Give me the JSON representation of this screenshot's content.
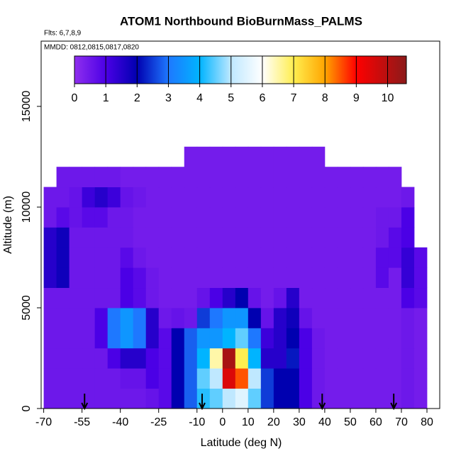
{
  "chart_data": {
    "type": "heatmap",
    "title": "ATOM1 Northbound BioBurnMass_PALMS",
    "subtitle": "Flts: 6,7,8,9",
    "annotation": "MMDD: 0812,0815,0817,0820",
    "x_label": "Latitude (deg N)",
    "y_label": "Altitude (m)",
    "xlim": [
      -71,
      85
    ],
    "ylim": [
      0,
      18240
    ],
    "xticks": [
      -70,
      -55,
      -40,
      -25,
      -10,
      0,
      10,
      20,
      30,
      40,
      50,
      60,
      70,
      80
    ],
    "yticks": [
      0,
      5000,
      10000,
      15000
    ],
    "xbins": [
      -70,
      -65,
      -60,
      -55,
      -50,
      -45,
      -40,
      -35,
      -30,
      -25,
      -20,
      -15,
      -10,
      -5,
      0,
      5,
      10,
      15,
      20,
      25,
      30,
      35,
      40,
      45,
      50,
      55,
      60,
      65,
      70,
      75,
      80
    ],
    "ybins": [
      0,
      1000,
      2000,
      3000,
      4000,
      5000,
      6000,
      7000,
      8000,
      9000,
      10000,
      11000,
      12000,
      13000
    ],
    "z": [
      [
        0.5,
        0.5,
        0.5,
        0.5,
        0.5,
        0.5,
        0.5,
        0.5,
        0.6,
        0.8,
        2.0,
        2.8,
        4.2,
        4.5,
        5.0,
        5.5,
        4.5,
        2.5,
        2.0,
        2.0,
        1.0,
        0.5,
        0.4,
        0.4,
        0.4,
        0.4,
        0.4,
        0.4,
        0.5,
        0.4
      ],
      [
        0.5,
        0.5,
        0.5,
        0.5,
        0.5,
        0.5,
        0.6,
        0.6,
        1.0,
        0.8,
        2.0,
        2.8,
        4.5,
        5.0,
        9.5,
        8.5,
        5.0,
        2.5,
        2.0,
        2.0,
        1.0,
        0.5,
        0.4,
        0.4,
        0.4,
        0.4,
        0.4,
        0.4,
        0.5,
        0.4
      ],
      [
        0.5,
        0.5,
        0.5,
        0.5,
        0.5,
        1.0,
        1.5,
        1.5,
        1.0,
        0.8,
        2.0,
        2.8,
        4.0,
        6.5,
        10.2,
        7.0,
        4.0,
        1.5,
        1.5,
        2.2,
        1.0,
        0.5,
        0.4,
        0.4,
        0.4,
        0.4,
        0.4,
        0.4,
        0.5,
        0.4
      ],
      [
        0.5,
        0.5,
        0.5,
        0.5,
        1.0,
        3.0,
        3.5,
        3.0,
        1.5,
        0.8,
        2.0,
        2.8,
        3.5,
        3.5,
        4.0,
        4.5,
        3.0,
        1.2,
        1.5,
        2.0,
        1.0,
        0.5,
        0.4,
        0.4,
        0.4,
        0.4,
        0.4,
        0.4,
        0.5,
        0.4
      ],
      [
        0.5,
        0.5,
        0.5,
        0.5,
        1.0,
        3.0,
        3.5,
        3.0,
        1.5,
        0.5,
        0.6,
        0.5,
        2.5,
        3.0,
        3.5,
        3.5,
        2.0,
        0.6,
        1.5,
        1.8,
        0.6,
        0.4,
        0.4,
        0.4,
        0.4,
        0.4,
        0.4,
        0.4,
        0.5,
        0.4
      ],
      [
        0.5,
        0.5,
        0.5,
        0.5,
        0.5,
        0.5,
        1.0,
        0.8,
        0.5,
        0.4,
        0.4,
        0.4,
        0.6,
        1.0,
        1.5,
        2.0,
        0.6,
        0.4,
        0.6,
        1.5,
        0.4,
        0.4,
        0.4,
        0.4,
        0.4,
        0.4,
        0.4,
        0.4,
        1.0,
        0.8
      ],
      [
        1.5,
        1.8,
        0.5,
        0.5,
        0.5,
        0.5,
        1.0,
        0.8,
        0.5,
        0.4,
        0.4,
        0.4,
        0.4,
        0.4,
        0.4,
        0.4,
        0.4,
        0.4,
        0.4,
        0.4,
        0.4,
        0.4,
        0.4,
        0.4,
        0.4,
        0.4,
        0.8,
        0.4,
        1.3,
        0.8
      ],
      [
        1.5,
        1.8,
        0.5,
        0.5,
        0.5,
        0.5,
        0.8,
        0.5,
        0.4,
        0.4,
        0.4,
        0.4,
        0.4,
        0.4,
        0.4,
        0.4,
        0.4,
        0.4,
        0.4,
        0.4,
        0.4,
        0.4,
        0.4,
        0.4,
        0.4,
        0.4,
        0.8,
        0.8,
        1.3,
        0.8
      ],
      [
        1.5,
        1.8,
        0.5,
        0.5,
        0.5,
        0.5,
        0.5,
        0.4,
        0.4,
        0.4,
        0.4,
        0.4,
        0.4,
        0.4,
        0.4,
        0.4,
        0.4,
        0.4,
        0.4,
        0.4,
        0.4,
        0.4,
        0.4,
        0.4,
        0.4,
        0.4,
        0.5,
        0.8,
        1.0,
        null
      ],
      [
        0.5,
        0.8,
        0.6,
        0.8,
        0.8,
        0.5,
        0.5,
        0.4,
        0.4,
        0.4,
        0.4,
        0.4,
        0.4,
        0.4,
        0.4,
        0.4,
        0.4,
        0.4,
        0.4,
        0.4,
        0.4,
        0.4,
        0.4,
        0.4,
        0.4,
        0.4,
        0.5,
        0.5,
        1.0,
        null
      ],
      [
        0.5,
        0.5,
        0.6,
        1.2,
        1.5,
        1.2,
        0.6,
        0.5,
        0.4,
        0.4,
        0.4,
        0.4,
        0.4,
        0.4,
        0.4,
        0.4,
        0.4,
        0.4,
        0.4,
        0.4,
        0.4,
        0.4,
        0.4,
        0.4,
        0.4,
        0.4,
        0.4,
        0.4,
        0.5,
        null
      ],
      [
        null,
        0.5,
        0.5,
        0.5,
        0.5,
        0.5,
        0.4,
        0.4,
        0.4,
        0.4,
        0.4,
        0.4,
        0.4,
        0.4,
        0.4,
        0.4,
        0.4,
        0.4,
        0.4,
        0.4,
        0.4,
        0.4,
        0.4,
        0.4,
        0.4,
        0.4,
        0.4,
        0.4,
        null,
        null
      ],
      [
        null,
        null,
        null,
        null,
        null,
        null,
        null,
        null,
        null,
        null,
        null,
        0.4,
        0.4,
        0.4,
        0.4,
        0.4,
        0.4,
        0.4,
        0.4,
        0.4,
        0.4,
        0.4,
        null,
        null,
        null,
        null,
        null,
        null,
        null,
        null
      ]
    ],
    "arrows_lat": [
      -54,
      -8,
      39,
      67
    ],
    "colorbar": {
      "lim": [
        0,
        10.6
      ],
      "ticks": [
        0,
        1,
        2,
        3,
        4,
        5,
        6,
        7,
        8,
        9,
        10
      ],
      "color_stops": [
        0,
        1,
        2,
        3,
        4,
        5,
        6,
        7,
        8,
        9,
        10.6
      ],
      "colors": [
        "#8f2fee",
        "#4b00e6",
        "#0000b0",
        "#1e78ff",
        "#00b4ff",
        "#bfe8ff",
        "#ffffff",
        "#ffee50",
        "#ffa500",
        "#ff0000",
        "#8b1a1a"
      ]
    }
  }
}
